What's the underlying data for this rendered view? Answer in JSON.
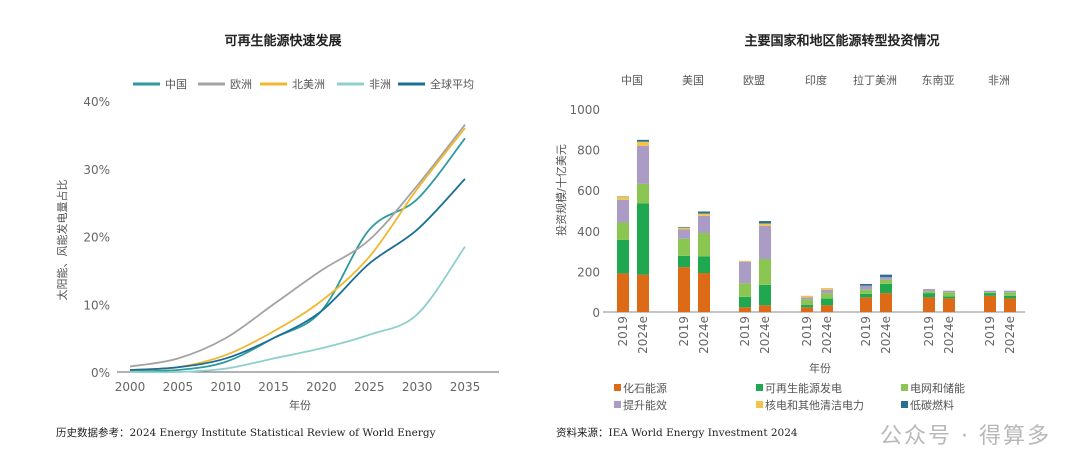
{
  "chart_data": [
    {
      "type": "line",
      "title": "可再生能源快速发展",
      "xlabel": "年份",
      "ylabel": "太阳能、风能发电量占比",
      "x": [
        2000,
        2005,
        2010,
        2015,
        2020,
        2025,
        2030,
        2035
      ],
      "xticks": [
        "2000",
        "2005",
        "2010",
        "2015",
        "2020",
        "2025",
        "2030",
        "2035"
      ],
      "yticks": [
        "0%",
        "10%",
        "20%",
        "30%",
        "40%"
      ],
      "ylim": [
        0,
        40
      ],
      "legend_position": "top",
      "series": [
        {
          "name": "中国",
          "color": "#2e9aa0",
          "values": [
            0.2,
            0.3,
            1.5,
            5,
            9,
            21,
            25.5,
            34.5
          ]
        },
        {
          "name": "欧洲",
          "color": "#a3a3a3",
          "values": [
            0.8,
            2,
            5,
            10,
            15,
            19.5,
            27.5,
            36.5
          ]
        },
        {
          "name": "北美洲",
          "color": "#f0b72f",
          "values": [
            0.3,
            0.7,
            2.5,
            6,
            10.5,
            17,
            27,
            36
          ]
        },
        {
          "name": "非洲",
          "color": "#8fd0cc",
          "values": [
            0,
            0,
            0.5,
            2,
            3.5,
            5.5,
            8.5,
            18.5
          ]
        },
        {
          "name": "全球平均",
          "color": "#1b6f97",
          "values": [
            0.3,
            0.7,
            2,
            5,
            9,
            16,
            21,
            28.5
          ]
        }
      ],
      "source": "历史数据参考：2024 Energy Institute Statistical Review of World Energy"
    },
    {
      "type": "bar",
      "stacked": true,
      "title": "主要国家和地区能源转型投资情况",
      "xlabel": "年份",
      "ylabel": "投资规模/十亿美元",
      "ylim": [
        0,
        1000
      ],
      "yticks": [
        "0",
        "200",
        "400",
        "600",
        "800",
        "1000"
      ],
      "groups": [
        "中国",
        "美国",
        "欧盟",
        "印度",
        "拉丁美洲",
        "东南亚",
        "非洲"
      ],
      "categories": [
        "2019",
        "2024e"
      ],
      "legend_position": "bottom",
      "series": [
        {
          "name": "化石能源",
          "color": "#dd6a17",
          "values": [
            [
              190,
              184
            ],
            [
              221,
              192
            ],
            [
              23,
              33
            ],
            [
              23,
              33
            ],
            [
              72,
              93
            ],
            [
              72,
              67
            ],
            [
              80,
              67
            ]
          ]
        },
        {
          "name": "可再生能源发电",
          "color": "#1fa84f",
          "values": [
            [
              166,
              352
            ],
            [
              56,
              82
            ],
            [
              52,
              101
            ],
            [
              13,
              33
            ],
            [
              18,
              46
            ],
            [
              21,
              10
            ],
            [
              13,
              13
            ]
          ]
        },
        {
          "name": "电网和储能",
          "color": "#8bc653",
          "values": [
            [
              85,
              95
            ],
            [
              84,
              115
            ],
            [
              66,
              127
            ],
            [
              25,
              27
            ],
            [
              20,
              20
            ],
            [
              9,
              20
            ],
            [
              5,
              17
            ]
          ]
        },
        {
          "name": "提升能效",
          "color": "#ab9cc6",
          "values": [
            [
              111,
              187
            ],
            [
              47,
              85
            ],
            [
              107,
              164
            ],
            [
              11,
              17
            ],
            [
              20,
              13
            ],
            [
              11,
              8
            ],
            [
              7,
              8
            ]
          ]
        },
        {
          "name": "核电和其他清洁电力",
          "color": "#f2c54a",
          "values": [
            [
              15,
              21
            ],
            [
              8,
              11
            ],
            [
              4,
              11
            ],
            [
              8,
              8
            ],
            [
              0,
              0
            ],
            [
              0,
              0
            ],
            [
              0,
              0
            ]
          ]
        },
        {
          "name": "低碳燃料",
          "color": "#2a6f8f",
          "values": [
            [
              2,
              9
            ],
            [
              3,
              10
            ],
            [
              0,
              12
            ],
            [
              0,
              0
            ],
            [
              8,
              12
            ],
            [
              0,
              0
            ],
            [
              0,
              0
            ]
          ]
        }
      ],
      "source": "资料来源：IEA World Energy Investment 2024"
    }
  ],
  "watermark": "公众号 · 得算多"
}
